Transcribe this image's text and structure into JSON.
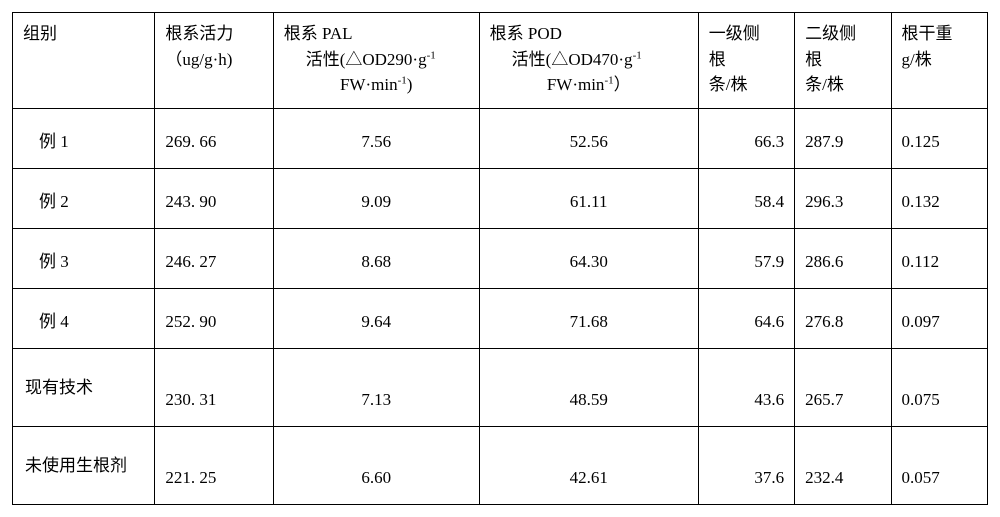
{
  "table": {
    "headers": {
      "group": "组别",
      "vitality_l1": "根系活力",
      "vitality_l2": "（ug/g·h)",
      "pal_l1": "根系 PAL",
      "pal_l2": "活性(△OD290·g",
      "pal_sup": "-1",
      "pal_l3": "FW·min",
      "pal_sup2": "-1",
      "pal_close": ")",
      "pod_l1": "根系 POD",
      "pod_l2": "活性(△OD470·g",
      "pod_sup": "-1",
      "pod_l3": "FW·min",
      "pod_sup2": "-1",
      "pod_close": "）",
      "lat1_l1": "一级侧",
      "lat1_l2": "根",
      "lat1_l3": "条/株",
      "lat2_l1": "二级侧",
      "lat2_l2": "根",
      "lat2_l3": "条/株",
      "dry_l1": "根干重",
      "dry_l2": "g/株"
    },
    "rows": [
      {
        "group": "例 1",
        "vitality": "269. 66",
        "pal": "7.56",
        "pod": "52.56",
        "lat1": "66.3",
        "lat2": "287.9",
        "dry": "0.125",
        "tall": false
      },
      {
        "group": "例 2",
        "vitality": "243. 90",
        "pal": "9.09",
        "pod": "61.11",
        "lat1": "58.4",
        "lat2": "296.3",
        "dry": "0.132",
        "tall": false
      },
      {
        "group": "例 3",
        "vitality": "246. 27",
        "pal": "8.68",
        "pod": "64.30",
        "lat1": "57.9",
        "lat2": "286.6",
        "dry": "0.112",
        "tall": false
      },
      {
        "group": "例 4",
        "vitality": "252. 90",
        "pal": "9.64",
        "pod": "71.68",
        "lat1": "64.6",
        "lat2": "276.8",
        "dry": "0.097",
        "tall": false
      },
      {
        "group": "现有技术",
        "vitality": "230. 31",
        "pal": "7.13",
        "pod": "48.59",
        "lat1": "43.6",
        "lat2": "265.7",
        "dry": "0.075",
        "tall": true
      },
      {
        "group": "未使用生根剂",
        "vitality": "221. 25",
        "pal": "6.60",
        "pod": "42.61",
        "lat1": "37.6",
        "lat2": "232.4",
        "dry": "0.057",
        "tall": true
      }
    ]
  }
}
